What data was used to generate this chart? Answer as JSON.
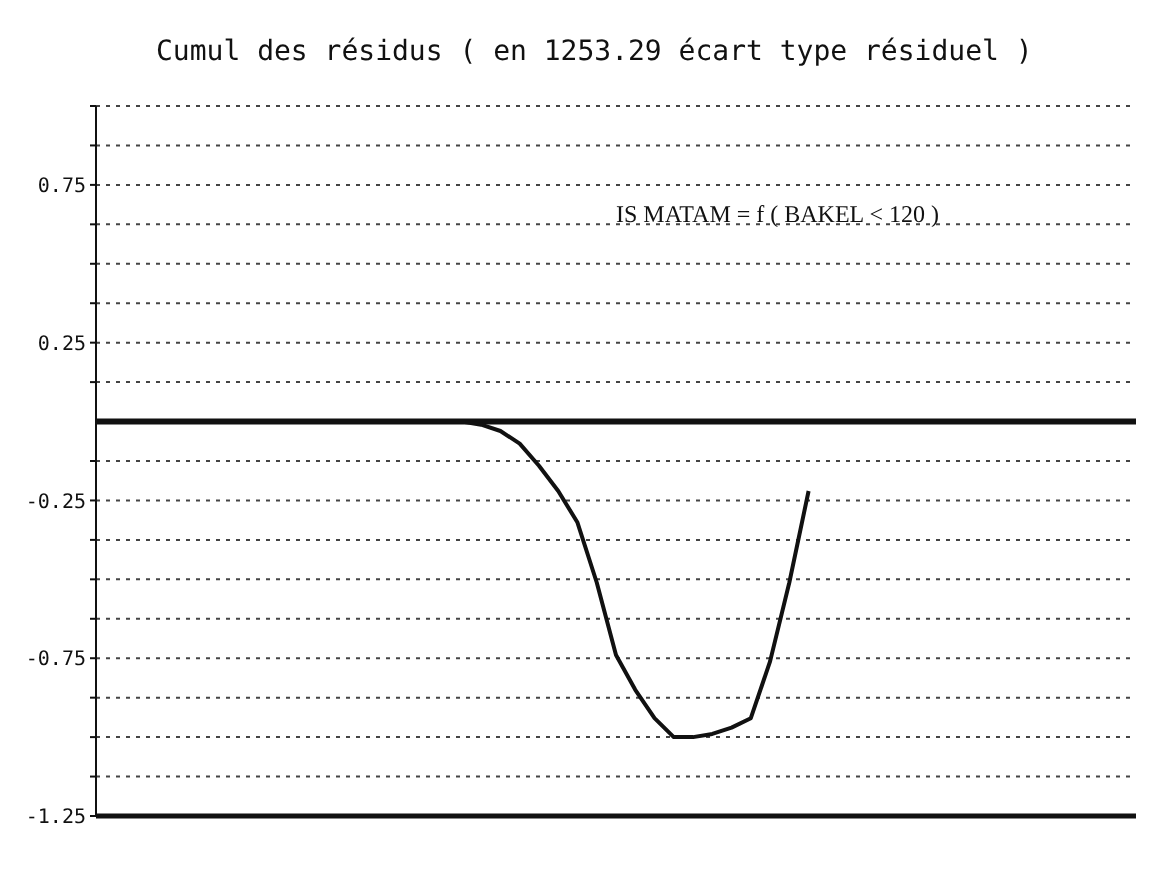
{
  "chart_data": {
    "type": "line",
    "title": "Cumul des résidus ( en 1253.29 écart type résiduel )",
    "annotations": [
      "IS MATAM = f ( BAKEL < 120 )"
    ],
    "categories": [
      null,
      null,
      null,
      null,
      null,
      null,
      null,
      null,
      null,
      null,
      null,
      null,
      null,
      null,
      null,
      null,
      null,
      null,
      null,
      null,
      null,
      null,
      null,
      null,
      null,
      null,
      null,
      null,
      null,
      null,
      null,
      null,
      null,
      null,
      null,
      null,
      null,
      null,
      null,
      null,
      null,
      null,
      null,
      null,
      null,
      null,
      null,
      null,
      null,
      null,
      null,
      null,
      null,
      null,
      null
    ],
    "series": [
      {
        "color": "#111111",
        "values": [
          0,
          0,
          0,
          0,
          0,
          0,
          0,
          0,
          0,
          0,
          0,
          0,
          0,
          0,
          0,
          0,
          0,
          0,
          0,
          0,
          -0.01,
          -0.03,
          -0.07,
          -0.14,
          -0.22,
          -0.32,
          -0.51,
          -0.74,
          -0.85,
          -0.94,
          -1.0,
          -1.0,
          -0.99,
          -0.97,
          -0.94,
          -0.76,
          -0.51,
          -0.22,
          null,
          null,
          null,
          null,
          null,
          null,
          null,
          null,
          null,
          null,
          null,
          null,
          null,
          null,
          null,
          null,
          null
        ]
      }
    ],
    "ylim": [
      -1.25,
      1.0
    ],
    "yticks": [
      {
        "value": -1.25,
        "label": "-1.25"
      },
      {
        "value": -1.125,
        "label": null
      },
      {
        "value": -1,
        "label": null
      },
      {
        "value": -0.875,
        "label": null
      },
      {
        "value": -0.75,
        "label": "-0.75"
      },
      {
        "value": -0.625,
        "label": null
      },
      {
        "value": -0.5,
        "label": null
      },
      {
        "value": -0.375,
        "label": null
      },
      {
        "value": -0.25,
        "label": "-0.25"
      },
      {
        "value": -0.125,
        "label": null
      },
      {
        "value": 0.125,
        "label": null
      },
      {
        "value": 0.25,
        "label": "0.25"
      },
      {
        "value": 0.375,
        "label": null
      },
      {
        "value": 0.5,
        "label": null
      },
      {
        "value": 0.625,
        "label": null
      },
      {
        "value": 0.75,
        "label": "0.75"
      },
      {
        "value": 0.875,
        "label": null
      },
      {
        "value": 1,
        "label": null
      }
    ],
    "ref_lines": [
      {
        "axis": "y",
        "value": 0,
        "color": "#111111"
      }
    ],
    "grid": "y",
    "marker": "none",
    "line_style": "solid"
  }
}
